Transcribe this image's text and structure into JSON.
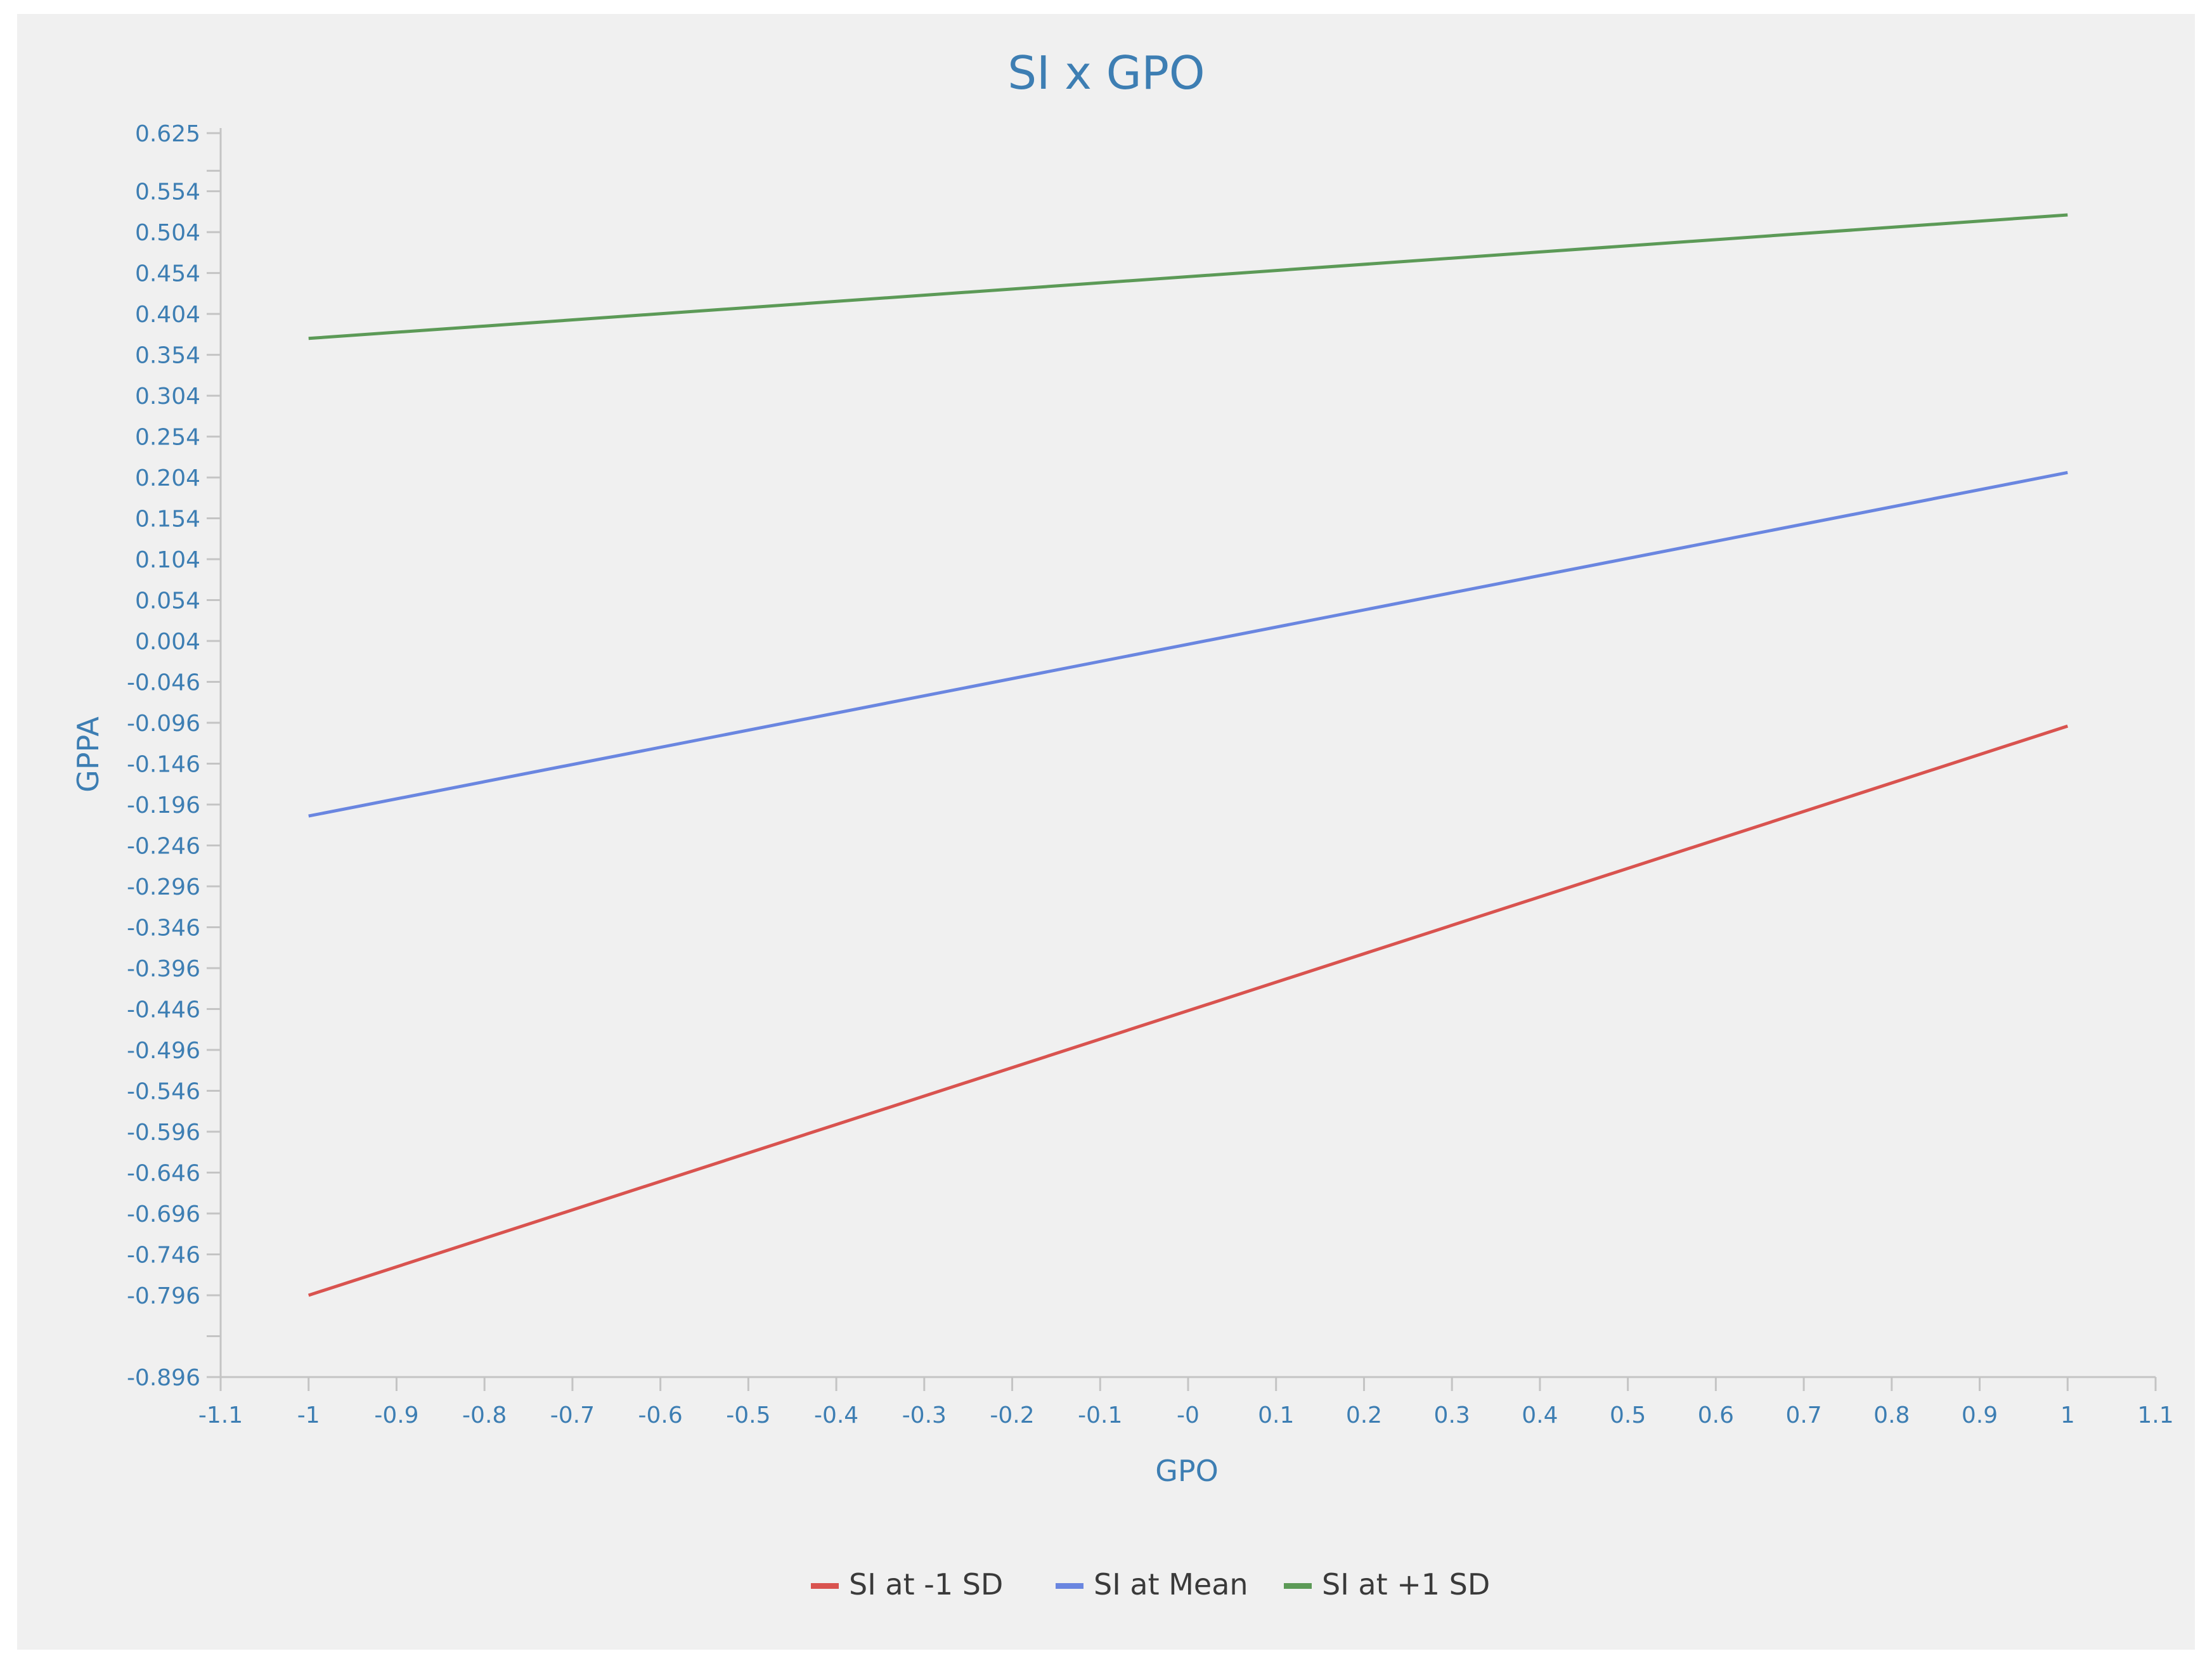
{
  "chart_data": {
    "type": "line",
    "title": "SI x GPO",
    "xlabel": "GPO",
    "ylabel": "GPPA",
    "xlim": [
      -1.1,
      1.1
    ],
    "ylim": [
      -0.896,
      0.625
    ],
    "x_ticks": [
      "-1.1",
      "-1",
      "-0.9",
      "-0.8",
      "-0.7",
      "-0.6",
      "-0.5",
      "-0.4",
      "-0.3",
      "-0.2",
      "-0.1",
      "-0",
      "0.1",
      "0.2",
      "0.3",
      "0.4",
      "0.5",
      "0.6",
      "0.7",
      "0.8",
      "0.9",
      "1",
      "1.1"
    ],
    "y_ticks": [
      "0.625",
      "0.554",
      "0.504",
      "0.454",
      "0.404",
      "0.354",
      "0.304",
      "0.254",
      "0.204",
      "0.154",
      "0.104",
      "0.054",
      "0.004",
      "-0.046",
      "-0.096",
      "-0.146",
      "-0.196",
      "-0.246",
      "-0.296",
      "-0.346",
      "-0.396",
      "-0.446",
      "-0.496",
      "-0.546",
      "-0.596",
      "-0.646",
      "-0.696",
      "-0.746",
      "-0.796",
      "-0.896"
    ],
    "grid": false,
    "legend_position": "bottom-center",
    "series": [
      {
        "name": "SI at -1 SD",
        "color": "#d9534f",
        "x": [
          -1,
          1
        ],
        "y": [
          -0.796,
          -0.1
        ]
      },
      {
        "name": "SI at Mean",
        "color": "#6a86e0",
        "x": [
          -1,
          1
        ],
        "y": [
          -0.21,
          0.21
        ]
      },
      {
        "name": "SI at +1 SD",
        "color": "#5c9a57",
        "x": [
          -1,
          1
        ],
        "y": [
          0.374,
          0.525
        ]
      }
    ]
  }
}
